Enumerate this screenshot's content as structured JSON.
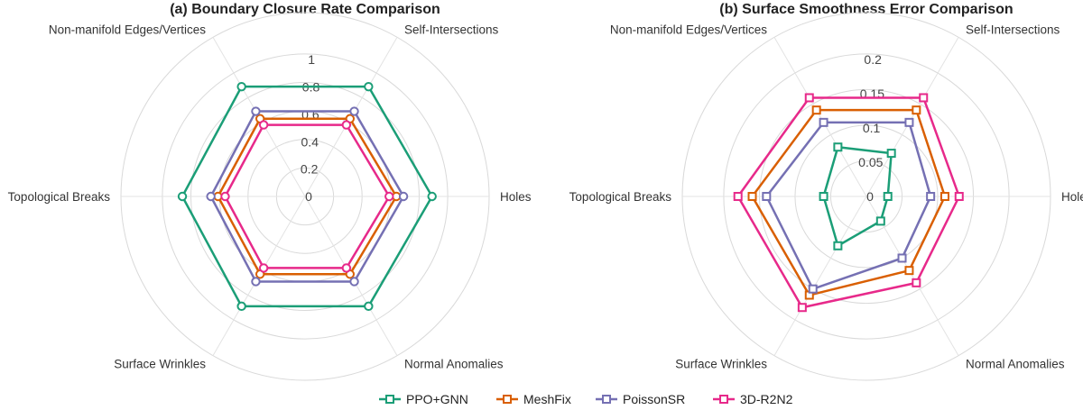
{
  "series_colors": {
    "PPO+GNN": "#1b9e77",
    "MeshFix": "#d95f02",
    "PoissonSR": "#7570b3",
    "3D-R2N2": "#e7298a"
  },
  "legend": [
    "PPO+GNN",
    "MeshFix",
    "PoissonSR",
    "3D-R2N2"
  ],
  "chart_data": [
    {
      "type": "radar",
      "title": "(a) Boundary Closure Rate Comparison",
      "axes": [
        "Holes",
        "Self-Intersections",
        "Non-manifold Edges/Vertices",
        "Topological Breaks",
        "Surface Wrinkles",
        "Normal Anomalies"
      ],
      "rmax": 1.0,
      "ticks": [
        0,
        0.2,
        0.4,
        0.6,
        0.8,
        1
      ],
      "tick_labels": [
        "0",
        "0.2",
        "0.4",
        "0.6",
        "0.8",
        "1"
      ],
      "marker": "circle",
      "series": [
        {
          "name": "PPO+GNN",
          "values": [
            0.89,
            0.89,
            0.89,
            0.86,
            0.89,
            0.89
          ]
        },
        {
          "name": "MeshFix",
          "values": [
            0.64,
            0.63,
            0.63,
            0.61,
            0.63,
            0.63
          ]
        },
        {
          "name": "PoissonSR",
          "values": [
            0.69,
            0.69,
            0.69,
            0.66,
            0.69,
            0.69
          ]
        },
        {
          "name": "3D-R2N2",
          "values": [
            0.59,
            0.58,
            0.58,
            0.56,
            0.58,
            0.58
          ]
        }
      ]
    },
    {
      "type": "radar",
      "title": "(b) Surface Smoothness Error Comparison",
      "axes": [
        "Holes",
        "Self-Intersections",
        "Non-manifold Edges/Vertices",
        "Topological Breaks",
        "Surface Wrinkles",
        "Normal Anomalies"
      ],
      "rmax": 0.2,
      "ticks": [
        0,
        0.05,
        0.1,
        0.15,
        0.2
      ],
      "tick_labels": [
        "0",
        "0.05",
        "0.1",
        "0.15",
        "0.2"
      ],
      "marker": "square",
      "series": [
        {
          "name": "PPO+GNN",
          "values": [
            0.03,
            0.07,
            0.08,
            0.06,
            0.08,
            0.04
          ]
        },
        {
          "name": "MeshFix",
          "values": [
            0.11,
            0.14,
            0.14,
            0.16,
            0.16,
            0.12
          ]
        },
        {
          "name": "PoissonSR",
          "values": [
            0.09,
            0.12,
            0.12,
            0.14,
            0.15,
            0.1
          ]
        },
        {
          "name": "3D-R2N2",
          "values": [
            0.13,
            0.16,
            0.16,
            0.18,
            0.18,
            0.14
          ]
        }
      ]
    }
  ]
}
